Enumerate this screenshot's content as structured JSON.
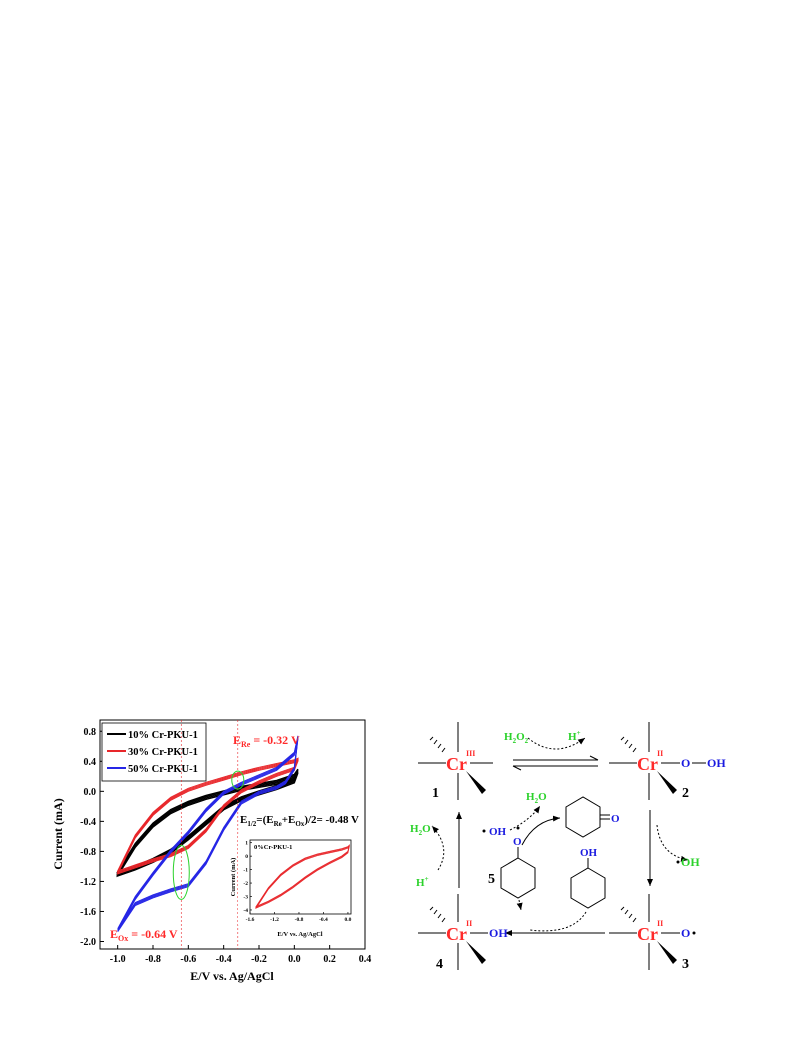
{
  "colors": {
    "black": "#000000",
    "red": "#e8262a",
    "blue": "#2626e6",
    "green": "#2bd22b",
    "ann_red": "#ff2a2a",
    "label_blue": "#1a1ae0"
  },
  "chart_data": {
    "type": "line",
    "xlabel": "E/V vs. Ag/AgCl",
    "ylabel": "Current (mA)",
    "xlim": [
      -1.1,
      0.4
    ],
    "ylim": [
      -2.1,
      0.95
    ],
    "x_ticks": [
      "-1.0",
      "-0.8",
      "-0.6",
      "-0.4",
      "-0.2",
      "0.0",
      "0.2",
      "0.4"
    ],
    "y_ticks": [
      "0.8",
      "0.4",
      "0.0",
      "-0.4",
      "-0.8",
      "-1.2",
      "-1.6",
      "-2.0"
    ],
    "legend": {
      "position": "top-left"
    },
    "series": [
      {
        "name": "10% Cr-PKU-1",
        "color": "#000000",
        "upper": [
          [
            -1.0,
            -1.1
          ],
          [
            -0.9,
            -0.72
          ],
          [
            -0.8,
            -0.45
          ],
          [
            -0.7,
            -0.27
          ],
          [
            -0.6,
            -0.16
          ],
          [
            -0.5,
            -0.08
          ],
          [
            -0.4,
            -0.02
          ],
          [
            -0.3,
            0.04
          ],
          [
            -0.2,
            0.08
          ],
          [
            -0.1,
            0.12
          ],
          [
            0.0,
            0.2
          ],
          [
            0.02,
            0.27
          ]
        ],
        "lower": [
          [
            0.02,
            0.27
          ],
          [
            0.0,
            0.14
          ],
          [
            -0.1,
            0.05
          ],
          [
            -0.2,
            -0.02
          ],
          [
            -0.3,
            -0.1
          ],
          [
            -0.4,
            -0.22
          ],
          [
            -0.5,
            -0.42
          ],
          [
            -0.6,
            -0.62
          ],
          [
            -0.7,
            -0.8
          ],
          [
            -0.8,
            -0.92
          ],
          [
            -0.9,
            -1.02
          ],
          [
            -1.0,
            -1.1
          ]
        ]
      },
      {
        "name": "30% Cr-PKU-1",
        "color": "#e8262a",
        "upper": [
          [
            -1.0,
            -1.08
          ],
          [
            -0.9,
            -0.6
          ],
          [
            -0.8,
            -0.3
          ],
          [
            -0.7,
            -0.1
          ],
          [
            -0.6,
            0.02
          ],
          [
            -0.5,
            0.1
          ],
          [
            -0.4,
            0.17
          ],
          [
            -0.3,
            0.24
          ],
          [
            -0.2,
            0.3
          ],
          [
            -0.1,
            0.35
          ],
          [
            0.0,
            0.4
          ],
          [
            0.02,
            0.42
          ]
        ],
        "lower": [
          [
            0.02,
            0.42
          ],
          [
            0.0,
            0.3
          ],
          [
            -0.1,
            0.22
          ],
          [
            -0.2,
            0.12
          ],
          [
            -0.3,
            0.0
          ],
          [
            -0.4,
            -0.2
          ],
          [
            -0.5,
            -0.52
          ],
          [
            -0.6,
            -0.74
          ],
          [
            -0.7,
            -0.85
          ],
          [
            -0.8,
            -0.92
          ],
          [
            -0.9,
            -1.0
          ],
          [
            -1.0,
            -1.08
          ]
        ]
      },
      {
        "name": "50% Cr-PKU-1",
        "color": "#2626e6",
        "upper": [
          [
            -1.0,
            -1.85
          ],
          [
            -0.9,
            -1.42
          ],
          [
            -0.8,
            -1.1
          ],
          [
            -0.7,
            -0.8
          ],
          [
            -0.6,
            -0.55
          ],
          [
            -0.5,
            -0.25
          ],
          [
            -0.4,
            -0.02
          ],
          [
            -0.3,
            0.1
          ],
          [
            -0.2,
            0.2
          ],
          [
            -0.1,
            0.3
          ],
          [
            0.0,
            0.5
          ],
          [
            0.02,
            0.72
          ]
        ],
        "lower": [
          [
            0.02,
            0.72
          ],
          [
            0.0,
            0.3
          ],
          [
            -0.05,
            0.12
          ],
          [
            -0.1,
            0.05
          ],
          [
            -0.2,
            -0.02
          ],
          [
            -0.3,
            -0.15
          ],
          [
            -0.4,
            -0.5
          ],
          [
            -0.5,
            -0.95
          ],
          [
            -0.6,
            -1.25
          ],
          [
            -0.7,
            -1.32
          ],
          [
            -0.8,
            -1.4
          ],
          [
            -0.9,
            -1.5
          ],
          [
            -1.0,
            -1.85
          ]
        ]
      }
    ],
    "annotations": {
      "e_re": {
        "label": "E",
        "sub": "Re",
        "rest": " = -0.32 V",
        "x": -0.32
      },
      "e_ox": {
        "label": "E",
        "sub": "Ox",
        "rest": " = -0.64 V",
        "x": -0.64
      },
      "e_half": {
        "label": "E",
        "sub1": "1/2",
        "mid1": "=(E",
        "sub2": "Re",
        "mid2": "+E",
        "sub3": "Ox",
        "rest": ")/2= -0.48 V"
      }
    },
    "inset": {
      "title": "0%Cr-PKU-1",
      "xlabel": "E/V vs. Ag/AgCl",
      "ylabel": "Current (mA)",
      "xlim": [
        -1.6,
        0.05
      ],
      "ylim": [
        -4.3,
        1.2
      ],
      "x_ticks": [
        "-1.6",
        "-1.2",
        "-0.8",
        "-0.4",
        "0.0"
      ],
      "y_ticks": [
        "1",
        "0",
        "-1",
        "-2",
        "-3",
        "-4"
      ],
      "upper": [
        [
          -1.5,
          -3.8
        ],
        [
          -1.3,
          -2.4
        ],
        [
          -1.1,
          -1.4
        ],
        [
          -0.9,
          -0.7
        ],
        [
          -0.7,
          -0.2
        ],
        [
          -0.5,
          0.1
        ],
        [
          -0.3,
          0.3
        ],
        [
          -0.1,
          0.5
        ],
        [
          0.0,
          0.65
        ],
        [
          0.02,
          0.75
        ]
      ],
      "lower": [
        [
          0.02,
          0.75
        ],
        [
          0.0,
          0.3
        ],
        [
          -0.1,
          -0.05
        ],
        [
          -0.3,
          -0.5
        ],
        [
          -0.5,
          -1.0
        ],
        [
          -0.7,
          -1.6
        ],
        [
          -0.9,
          -2.3
        ],
        [
          -1.1,
          -2.9
        ],
        [
          -1.3,
          -3.4
        ],
        [
          -1.5,
          -3.8
        ]
      ]
    }
  },
  "scheme": {
    "metal": "Cr",
    "ox3": "III",
    "ox2": "II",
    "numbers": [
      "1",
      "2",
      "3",
      "4",
      "5"
    ],
    "h2o2": {
      "main": "H",
      "sub1": "2",
      "mid": "O",
      "sub2": "2"
    },
    "hplus_top": {
      "main": "H",
      "sup": "+"
    },
    "ooh": [
      "O",
      "OH"
    ],
    "h2o_left": {
      "main": "H",
      "sub": "2",
      "rest": "O"
    },
    "hplus_left": {
      "main": "H",
      "sup": "+"
    },
    "h2o_mid": {
      "main": "H",
      "sub": "2",
      "rest": "O"
    },
    "oh_mid": "OH",
    "oh_right": "OH",
    "o_radical": "O",
    "o_cyclo": "O",
    "ketone_o": "O",
    "oh_cyclo": "OH",
    "oh_cr4": "OH"
  }
}
